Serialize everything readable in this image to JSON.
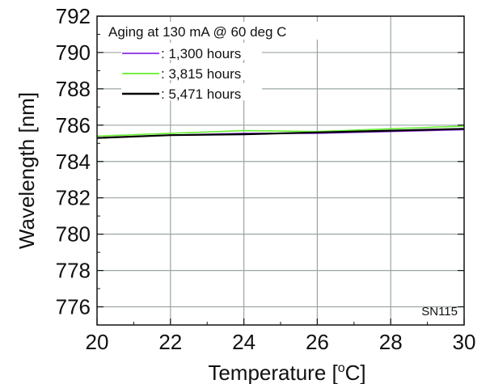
{
  "chart_data": {
    "type": "line",
    "xlabel": "Temperature [°C]",
    "xlabel_parts": {
      "pre": "Temperature [",
      "sup": "o",
      "post": "C]"
    },
    "ylabel": "Wavelength [nm]",
    "xlim": [
      20,
      30
    ],
    "ylim": [
      775,
      792
    ],
    "xticks": [
      20,
      22,
      24,
      26,
      28,
      30
    ],
    "yticks": [
      776,
      778,
      780,
      782,
      784,
      786,
      788,
      790,
      792
    ],
    "xtick_labels": [
      "20",
      "22",
      "24",
      "26",
      "28",
      "30"
    ],
    "ytick_labels": [
      "776",
      "778",
      "780",
      "782",
      "784",
      "786",
      "788",
      "790",
      "792"
    ],
    "grid": true,
    "legend_title": "Aging at 130 mA @ 60 deg C",
    "legend_position": "top-left",
    "annotation": "SN115",
    "series": [
      {
        "name": ": 1,300 hours",
        "color": "#8a2be2",
        "x": [
          20,
          22,
          24,
          26,
          28,
          30
        ],
        "y": [
          785.3,
          785.45,
          785.55,
          785.55,
          785.65,
          785.75
        ]
      },
      {
        "name": ": 3,815 hours",
        "color": "#66ee33",
        "x": [
          20,
          22,
          24,
          26,
          28,
          30
        ],
        "y": [
          785.4,
          785.55,
          785.7,
          785.65,
          785.8,
          785.95
        ]
      },
      {
        "name": ": 5,471 hours",
        "color": "#000000",
        "x": [
          20,
          22,
          24,
          26,
          28,
          30
        ],
        "y": [
          785.3,
          785.45,
          785.5,
          785.6,
          785.7,
          785.8
        ]
      }
    ]
  }
}
